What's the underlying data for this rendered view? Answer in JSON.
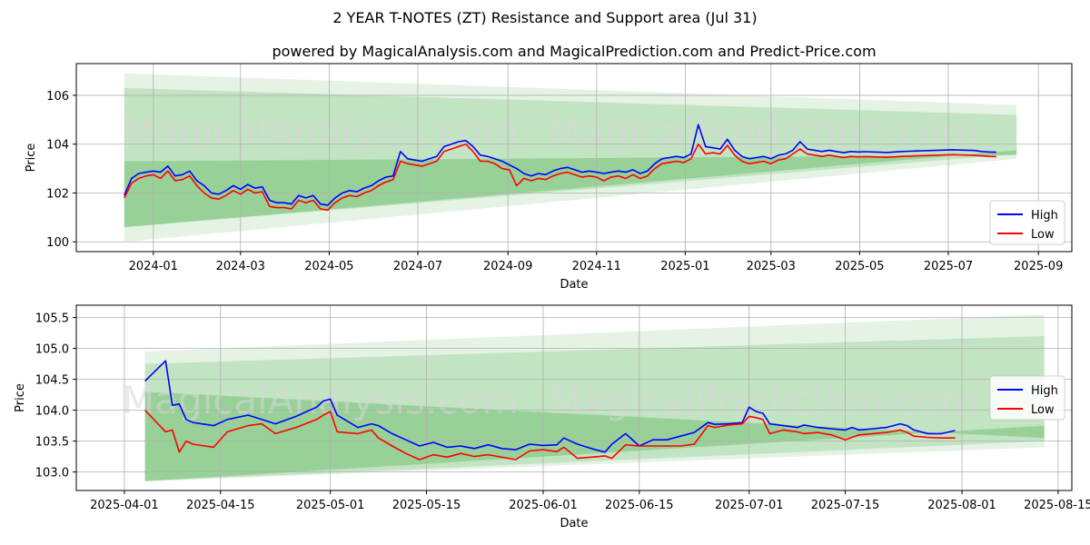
{
  "colors": {
    "high": "#0000ff",
    "low": "#ff0000",
    "band": "#2ca02c",
    "grid": "#b0b0b0"
  },
  "chart_data": [
    {
      "type": "line",
      "title": "2 YEAR T-NOTES (ZT) Resistance and Support area (Jul 31)",
      "subtitle": "powered by MagicalAnalysis.com and MagicalPrediction.com and Predict-Price.com",
      "xlabel": "Date",
      "ylabel": "Price",
      "xlim": [
        -53,
        632
      ],
      "ylim": [
        99.6,
        107.3
      ],
      "x_ticks": [
        {
          "v": 0,
          "label": "2024-01"
        },
        {
          "v": 60,
          "label": "2024-03"
        },
        {
          "v": 121,
          "label": "2024-05"
        },
        {
          "v": 182,
          "label": "2024-07"
        },
        {
          "v": 244,
          "label": "2024-09"
        },
        {
          "v": 305,
          "label": "2024-11"
        },
        {
          "v": 366,
          "label": "2025-01"
        },
        {
          "v": 425,
          "label": "2025-03"
        },
        {
          "v": 486,
          "label": "2025-05"
        },
        {
          "v": 547,
          "label": "2025-07"
        },
        {
          "v": 609,
          "label": "2025-09"
        }
      ],
      "y_ticks": [
        100,
        102,
        104,
        106
      ],
      "legend": [
        "High",
        "Low"
      ],
      "legend_position": "lower-right",
      "bands": [
        {
          "x0": -20,
          "x1": 594,
          "top0": 106.9,
          "bot0": 100.0,
          "top1": 105.6,
          "bot1": 103.4
        },
        {
          "x0": -20,
          "x1": 594,
          "top0": 106.3,
          "bot0": 100.6,
          "top1": 105.2,
          "bot1": 103.6
        },
        {
          "x0": -20,
          "x1": 594,
          "top0": 103.3,
          "bot0": 100.6,
          "top1": 103.55,
          "bot1": 103.75
        }
      ],
      "series": [
        {
          "name": "High",
          "x": [
            -20,
            -15,
            -10,
            -5,
            0,
            5,
            10,
            15,
            20,
            25,
            30,
            35,
            40,
            45,
            50,
            55,
            60,
            65,
            70,
            75,
            80,
            85,
            90,
            95,
            100,
            105,
            110,
            115,
            120,
            125,
            130,
            135,
            140,
            145,
            150,
            155,
            160,
            165,
            170,
            175,
            180,
            185,
            190,
            195,
            200,
            205,
            210,
            215,
            220,
            225,
            230,
            235,
            240,
            245,
            250,
            255,
            260,
            265,
            270,
            275,
            280,
            285,
            290,
            295,
            300,
            305,
            310,
            315,
            320,
            325,
            330,
            335,
            340,
            345,
            350,
            355,
            360,
            365,
            370,
            375,
            380,
            385,
            390,
            395,
            400,
            405,
            410,
            415,
            420,
            425,
            430,
            435,
            440,
            445,
            450,
            455,
            460,
            465,
            470,
            475,
            480,
            485,
            490,
            495,
            500,
            505,
            510,
            515,
            520,
            525,
            530,
            535,
            540,
            545,
            550,
            555,
            560,
            565,
            570,
            575,
            580
          ],
          "values": [
            101.9,
            102.6,
            102.8,
            102.85,
            102.9,
            102.85,
            103.1,
            102.7,
            102.75,
            102.9,
            102.5,
            102.3,
            102.0,
            101.95,
            102.1,
            102.3,
            102.15,
            102.35,
            102.2,
            102.25,
            101.7,
            101.6,
            101.6,
            101.55,
            101.9,
            101.8,
            101.9,
            101.55,
            101.5,
            101.8,
            102.0,
            102.1,
            102.05,
            102.2,
            102.3,
            102.5,
            102.65,
            102.7,
            103.7,
            103.4,
            103.35,
            103.3,
            103.4,
            103.5,
            103.9,
            104.0,
            104.1,
            104.15,
            103.9,
            103.55,
            103.5,
            103.4,
            103.3,
            103.15,
            103.0,
            102.8,
            102.7,
            102.8,
            102.75,
            102.9,
            103.0,
            103.05,
            102.95,
            102.85,
            102.9,
            102.85,
            102.8,
            102.85,
            102.9,
            102.85,
            102.95,
            102.8,
            102.9,
            103.2,
            103.4,
            103.45,
            103.5,
            103.45,
            103.6,
            104.8,
            103.9,
            103.85,
            103.8,
            104.2,
            103.75,
            103.5,
            103.4,
            103.45,
            103.5,
            103.4,
            103.55,
            103.6,
            103.75,
            104.1,
            103.8,
            103.75,
            103.7,
            103.75,
            103.7,
            103.65,
            103.7,
            103.68,
            103.69,
            103.68,
            103.67,
            103.66,
            103.68,
            103.7,
            103.71,
            103.72,
            103.73,
            103.74,
            103.75,
            103.76,
            103.77,
            103.76,
            103.75,
            103.74,
            103.7,
            103.68,
            103.67
          ]
        },
        {
          "name": "Low",
          "x": [
            -20,
            -15,
            -10,
            -5,
            0,
            5,
            10,
            15,
            20,
            25,
            30,
            35,
            40,
            45,
            50,
            55,
            60,
            65,
            70,
            75,
            80,
            85,
            90,
            95,
            100,
            105,
            110,
            115,
            120,
            125,
            130,
            135,
            140,
            145,
            150,
            155,
            160,
            165,
            170,
            175,
            180,
            185,
            190,
            195,
            200,
            205,
            210,
            215,
            220,
            225,
            230,
            235,
            240,
            245,
            250,
            255,
            260,
            265,
            270,
            275,
            280,
            285,
            290,
            295,
            300,
            305,
            310,
            315,
            320,
            325,
            330,
            335,
            340,
            345,
            350,
            355,
            360,
            365,
            370,
            375,
            380,
            385,
            390,
            395,
            400,
            405,
            410,
            415,
            420,
            425,
            430,
            435,
            440,
            445,
            450,
            455,
            460,
            465,
            470,
            475,
            480,
            485,
            490,
            495,
            500,
            505,
            510,
            515,
            520,
            525,
            530,
            535,
            540,
            545,
            550,
            555,
            560,
            565,
            570,
            575,
            580
          ],
          "values": [
            101.8,
            102.4,
            102.6,
            102.7,
            102.75,
            102.6,
            102.9,
            102.5,
            102.55,
            102.7,
            102.3,
            102.0,
            101.8,
            101.75,
            101.9,
            102.1,
            101.95,
            102.15,
            102.0,
            102.05,
            101.45,
            101.4,
            101.4,
            101.35,
            101.7,
            101.6,
            101.7,
            101.35,
            101.3,
            101.6,
            101.8,
            101.9,
            101.85,
            102.0,
            102.1,
            102.3,
            102.45,
            102.55,
            103.3,
            103.2,
            103.15,
            103.1,
            103.2,
            103.3,
            103.7,
            103.8,
            103.9,
            104.0,
            103.7,
            103.3,
            103.3,
            103.2,
            103.0,
            102.95,
            102.3,
            102.6,
            102.5,
            102.6,
            102.55,
            102.7,
            102.8,
            102.85,
            102.75,
            102.65,
            102.7,
            102.65,
            102.5,
            102.65,
            102.7,
            102.6,
            102.75,
            102.6,
            102.7,
            103.0,
            103.2,
            103.25,
            103.3,
            103.25,
            103.4,
            104.0,
            103.6,
            103.65,
            103.6,
            103.95,
            103.55,
            103.3,
            103.2,
            103.25,
            103.3,
            103.2,
            103.35,
            103.4,
            103.6,
            103.8,
            103.6,
            103.55,
            103.5,
            103.55,
            103.5,
            103.45,
            103.5,
            103.48,
            103.49,
            103.48,
            103.47,
            103.46,
            103.48,
            103.5,
            103.51,
            103.52,
            103.53,
            103.54,
            103.55,
            103.56,
            103.57,
            103.56,
            103.55,
            103.54,
            103.52,
            103.5,
            103.49
          ]
        }
      ]
    },
    {
      "type": "line",
      "xlabel": "Date",
      "ylabel": "Price",
      "xlim": [
        -7,
        138
      ],
      "ylim": [
        102.7,
        105.7
      ],
      "x_ticks": [
        {
          "v": 0,
          "label": "2025-04-01"
        },
        {
          "v": 14,
          "label": "2025-04-15"
        },
        {
          "v": 30,
          "label": "2025-05-01"
        },
        {
          "v": 44,
          "label": "2025-05-15"
        },
        {
          "v": 61,
          "label": "2025-06-01"
        },
        {
          "v": 75,
          "label": "2025-06-15"
        },
        {
          "v": 91,
          "label": "2025-07-01"
        },
        {
          "v": 105,
          "label": "2025-07-15"
        },
        {
          "v": 122,
          "label": "2025-08-01"
        },
        {
          "v": 136,
          "label": "2025-08-15"
        }
      ],
      "y_ticks": [
        103.0,
        103.5,
        104.0,
        104.5,
        105.0,
        105.5
      ],
      "legend": [
        "High",
        "Low"
      ],
      "legend_position": "center-right",
      "bands": [
        {
          "x0": 3,
          "x1": 134,
          "top0": 104.95,
          "bot0": 102.85,
          "top1": 105.55,
          "bot1": 103.4
        },
        {
          "x0": 3,
          "x1": 134,
          "top0": 104.75,
          "bot0": 102.85,
          "top1": 105.2,
          "bot1": 103.5
        },
        {
          "x0": 3,
          "x1": 134,
          "top0": 104.3,
          "bot0": 102.85,
          "top1": 103.55,
          "bot1": 103.75
        }
      ],
      "series": [
        {
          "name": "High",
          "x": [
            3,
            6,
            7,
            8,
            9,
            10,
            13,
            15,
            18,
            20,
            22,
            25,
            28,
            29,
            30,
            31,
            34,
            36,
            37,
            39,
            41,
            43,
            45,
            47,
            49,
            51,
            53,
            55,
            57,
            59,
            61,
            63,
            64,
            66,
            68,
            70,
            71,
            73,
            75,
            77,
            79,
            81,
            83,
            85,
            86,
            88,
            90,
            91,
            92,
            93,
            94,
            96,
            98,
            99,
            101,
            103,
            105,
            106,
            107,
            109,
            111,
            113,
            114,
            115,
            117,
            119,
            121
          ],
          "values": [
            104.47,
            104.8,
            104.08,
            104.1,
            103.85,
            103.8,
            103.75,
            103.85,
            103.92,
            103.85,
            103.78,
            103.9,
            104.05,
            104.15,
            104.18,
            103.92,
            103.72,
            103.78,
            103.75,
            103.62,
            103.52,
            103.42,
            103.48,
            103.4,
            103.42,
            103.38,
            103.44,
            103.38,
            103.36,
            103.45,
            103.43,
            103.44,
            103.55,
            103.45,
            103.38,
            103.32,
            103.45,
            103.62,
            103.42,
            103.52,
            103.52,
            103.58,
            103.64,
            103.8,
            103.77,
            103.78,
            103.8,
            104.05,
            103.98,
            103.95,
            103.78,
            103.75,
            103.72,
            103.76,
            103.72,
            103.7,
            103.68,
            103.72,
            103.68,
            103.7,
            103.72,
            103.78,
            103.75,
            103.68,
            103.62,
            103.62,
            103.67
          ]
        },
        {
          "name": "Low",
          "x": [
            3,
            6,
            7,
            8,
            9,
            10,
            13,
            15,
            18,
            20,
            22,
            25,
            28,
            29,
            30,
            31,
            34,
            36,
            37,
            39,
            41,
            43,
            45,
            47,
            49,
            51,
            53,
            55,
            57,
            59,
            61,
            63,
            64,
            66,
            68,
            70,
            71,
            73,
            75,
            77,
            79,
            81,
            83,
            85,
            86,
            88,
            90,
            91,
            92,
            93,
            94,
            96,
            98,
            99,
            101,
            103,
            105,
            106,
            107,
            109,
            111,
            113,
            114,
            115,
            117,
            119,
            121
          ],
          "values": [
            104.0,
            103.65,
            103.68,
            103.32,
            103.5,
            103.45,
            103.4,
            103.65,
            103.75,
            103.78,
            103.62,
            103.72,
            103.85,
            103.92,
            103.98,
            103.65,
            103.62,
            103.68,
            103.55,
            103.42,
            103.3,
            103.2,
            103.28,
            103.24,
            103.3,
            103.25,
            103.28,
            103.24,
            103.2,
            103.34,
            103.36,
            103.33,
            103.4,
            103.22,
            103.24,
            103.26,
            103.22,
            103.44,
            103.42,
            103.42,
            103.42,
            103.42,
            103.45,
            103.75,
            103.72,
            103.76,
            103.78,
            103.9,
            103.88,
            103.85,
            103.62,
            103.68,
            103.65,
            103.62,
            103.64,
            103.6,
            103.52,
            103.56,
            103.6,
            103.62,
            103.64,
            103.68,
            103.64,
            103.58,
            103.56,
            103.55,
            103.55
          ]
        }
      ]
    }
  ],
  "watermarks": [
    "MagicalAnalysis.com",
    "MagicalPrediction.com"
  ]
}
